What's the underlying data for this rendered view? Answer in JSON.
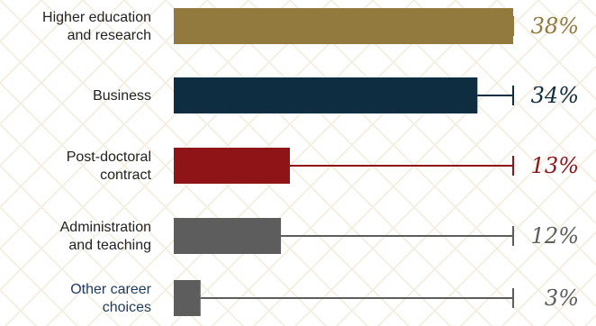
{
  "chart_data": {
    "type": "bar",
    "orientation": "horizontal",
    "categories": [
      [
        "Higher education",
        "and research"
      ],
      [
        "Business"
      ],
      [
        "Post-doctoral",
        "contract"
      ],
      [
        "Administration",
        "and teaching"
      ],
      [
        "Other career",
        "choices"
      ]
    ],
    "values": [
      38,
      34,
      13,
      12,
      3
    ],
    "value_labels": [
      "38%",
      "34%",
      "13%",
      "12%",
      "3%"
    ],
    "colors": [
      "#927a3e",
      "#0f2d40",
      "#8f1418",
      "#5d5d5d",
      "#5d5d5d"
    ],
    "label_colors": [
      "#927a3e",
      "#0f2d40",
      "#8f1418",
      "#5d5d5d",
      "#5d5d5d"
    ],
    "category_label_colors": [
      "#222222",
      "#222222",
      "#222222",
      "#222222",
      "#1f3a5c"
    ],
    "xlim": [
      0,
      38
    ],
    "grid": false,
    "legend": "none",
    "title": "",
    "xlabel": "",
    "ylabel": ""
  }
}
